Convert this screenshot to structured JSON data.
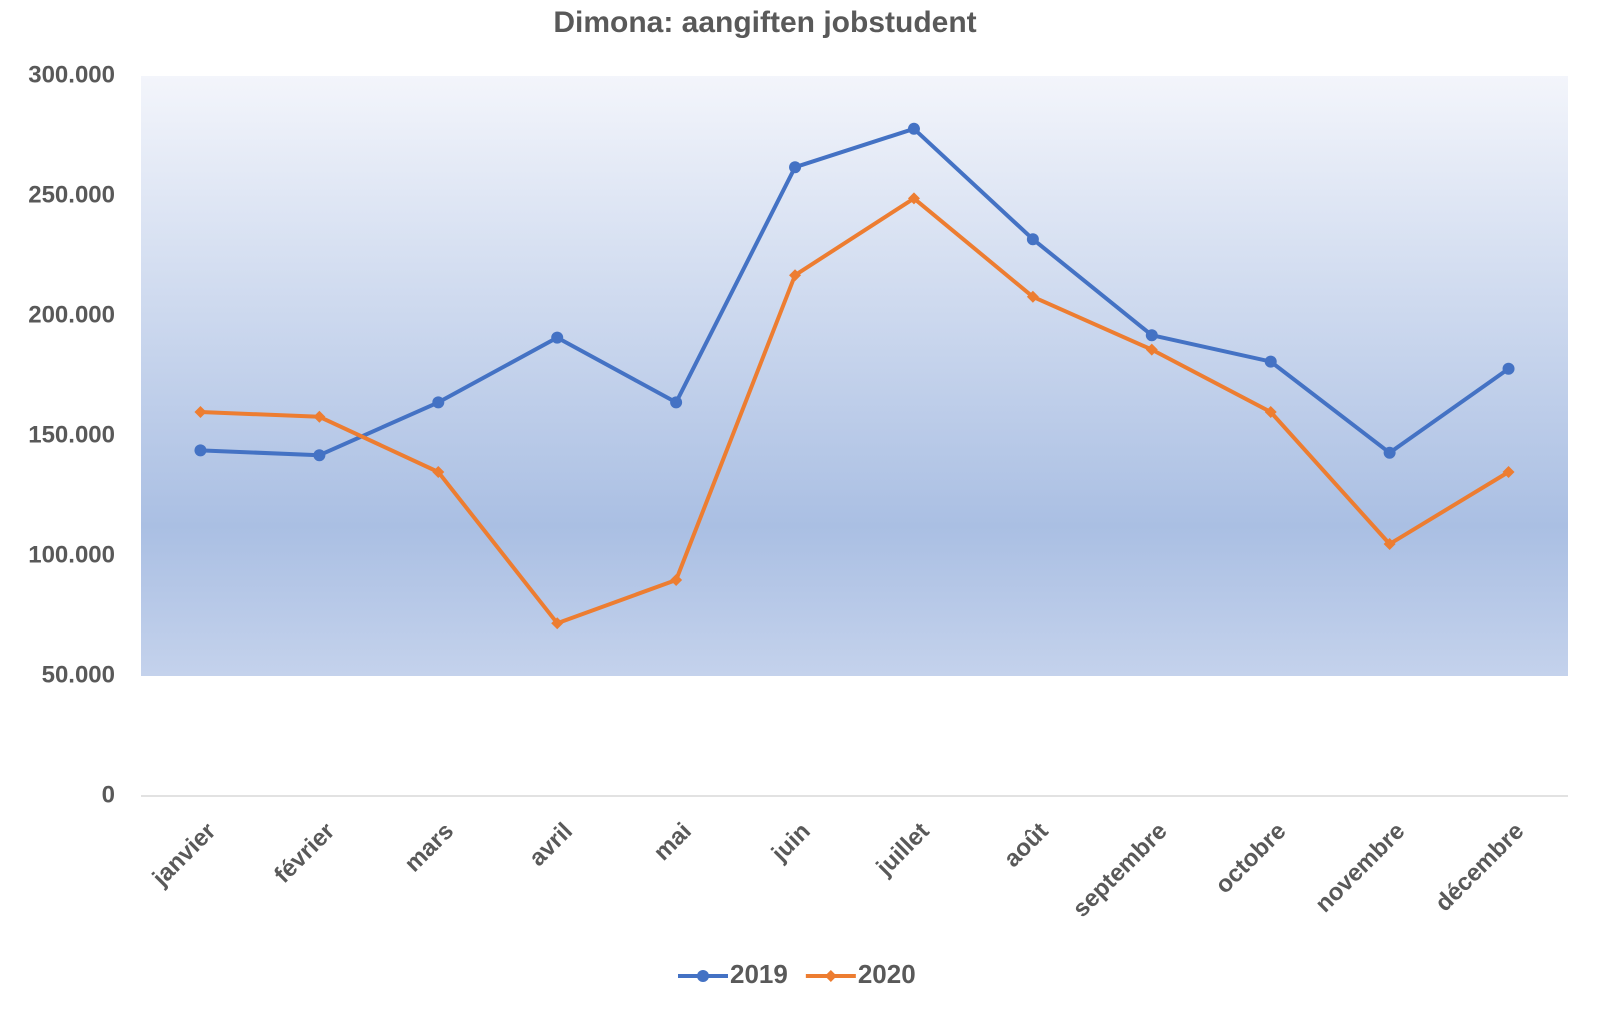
{
  "chart_data": {
    "type": "line",
    "title": "Dimona: aangiften jobstudent",
    "categories": [
      "janvier",
      "février",
      "mars",
      "avril",
      "mai",
      "juin",
      "juillet",
      "août",
      "septembre",
      "octobre",
      "novembre",
      "décembre"
    ],
    "series": [
      {
        "name": "2019",
        "color": "#4472c4",
        "marker": "circle",
        "values": [
          144000,
          142000,
          164000,
          191000,
          164000,
          262000,
          278000,
          232000,
          192000,
          181000,
          143000,
          178000
        ]
      },
      {
        "name": "2020",
        "color": "#ed7d31",
        "marker": "diamond",
        "values": [
          160000,
          158000,
          135000,
          72000,
          90000,
          217000,
          249000,
          208000,
          186000,
          160000,
          105000,
          135000
        ]
      }
    ],
    "ylim": [
      0,
      300000
    ],
    "yticks": [
      0,
      {
        "value": 50000,
        "label": "50.000"
      },
      {
        "value": 100000,
        "label": "100.000"
      },
      {
        "value": 150000,
        "label": "150.000"
      },
      {
        "value": 200000,
        "label": "200.000"
      },
      {
        "value": 250000,
        "label": "250.000"
      },
      {
        "value": 300000,
        "label": "300.000"
      }
    ],
    "grid": false,
    "legend": "bottom"
  }
}
